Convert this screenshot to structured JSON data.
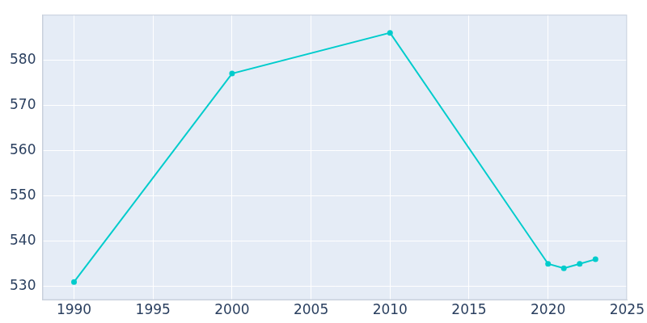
{
  "chart_data": {
    "type": "line",
    "x": [
      1990,
      2000,
      2010,
      2020,
      2021,
      2022,
      2023
    ],
    "values": [
      531,
      577,
      586,
      535,
      534,
      535,
      536
    ],
    "color": "#00cccc",
    "marker": "circle",
    "xlim": [
      1988,
      2025
    ],
    "xticks": [
      1990,
      1995,
      2000,
      2005,
      2010,
      2015,
      2020,
      2025
    ],
    "ylim": [
      527,
      590
    ],
    "yticks": [
      530,
      540,
      550,
      560,
      570,
      580
    ],
    "grid": true
  }
}
